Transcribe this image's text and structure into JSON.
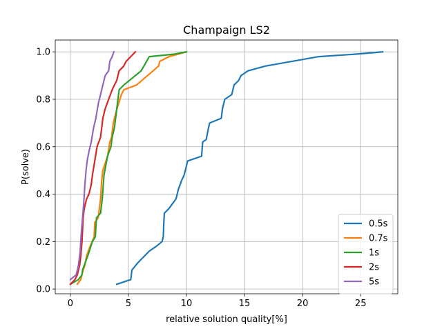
{
  "chart_data": {
    "type": "line",
    "title": "Champaign LS2",
    "xlabel": "relative solution quality[%]",
    "ylabel": "P(solve)",
    "xlim": [
      -1.3,
      28.2
    ],
    "ylim": [
      -0.02,
      1.05
    ],
    "xticks": [
      0,
      5,
      10,
      15,
      20,
      25
    ],
    "xtick_labels": [
      "0",
      "5",
      "10",
      "15",
      "20",
      "25"
    ],
    "yticks": [
      0.0,
      0.2,
      0.4,
      0.6,
      0.8,
      1.0
    ],
    "ytick_labels": [
      "0.0",
      "0.2",
      "0.4",
      "0.6",
      "0.8",
      "1.0"
    ],
    "grid": true,
    "legend_position": "lower-right",
    "series": [
      {
        "name": "0.5s",
        "color": "#1f77b4",
        "x": [
          4.0,
          5.2,
          5.3,
          5.8,
          6.2,
          6.8,
          7.4,
          7.9,
          8.0,
          8.05,
          8.1,
          8.5,
          9.1,
          9.3,
          9.6,
          9.8,
          10.1,
          11.3,
          11.4,
          11.7,
          11.9,
          12.0,
          13.0,
          13.1,
          13.3,
          13.9,
          14.1,
          14.5,
          14.7,
          15.3,
          16.8,
          21.4,
          24.5,
          26.9
        ],
        "y": [
          0.02,
          0.04,
          0.08,
          0.11,
          0.13,
          0.16,
          0.18,
          0.2,
          0.22,
          0.28,
          0.32,
          0.34,
          0.38,
          0.42,
          0.46,
          0.48,
          0.54,
          0.56,
          0.62,
          0.63,
          0.68,
          0.7,
          0.72,
          0.76,
          0.8,
          0.82,
          0.86,
          0.88,
          0.9,
          0.92,
          0.94,
          0.98,
          0.99,
          1.0
        ]
      },
      {
        "name": "0.7s",
        "color": "#ff7f0e",
        "x": [
          0.6,
          0.9,
          1.0,
          1.1,
          1.25,
          1.4,
          1.7,
          2.05,
          2.1,
          2.4,
          2.6,
          2.7,
          2.8,
          3.2,
          3.4,
          3.55,
          3.7,
          3.9,
          4.4,
          4.6,
          5.7,
          7.6,
          7.7,
          8.5,
          10.0
        ],
        "y": [
          0.02,
          0.04,
          0.06,
          0.08,
          0.1,
          0.14,
          0.18,
          0.22,
          0.28,
          0.3,
          0.38,
          0.46,
          0.5,
          0.56,
          0.62,
          0.64,
          0.7,
          0.74,
          0.82,
          0.84,
          0.86,
          0.94,
          0.96,
          0.98,
          1.0
        ]
      },
      {
        "name": "1s",
        "color": "#2ca02c",
        "x": [
          0.0,
          0.7,
          1.0,
          1.05,
          1.2,
          1.5,
          1.9,
          2.15,
          2.25,
          2.6,
          2.75,
          2.9,
          3.2,
          3.5,
          3.6,
          3.8,
          4.0,
          4.2,
          4.6,
          5.6,
          6.1,
          6.8,
          8.9,
          10.0
        ],
        "y": [
          0.02,
          0.04,
          0.06,
          0.08,
          0.1,
          0.14,
          0.2,
          0.22,
          0.3,
          0.32,
          0.38,
          0.48,
          0.56,
          0.6,
          0.64,
          0.68,
          0.76,
          0.84,
          0.86,
          0.9,
          0.92,
          0.98,
          0.99,
          1.0
        ]
      },
      {
        "name": "2s",
        "color": "#d62728",
        "x": [
          0.0,
          0.4,
          0.6,
          0.8,
          0.9,
          1.0,
          1.1,
          1.2,
          1.4,
          1.6,
          1.8,
          1.9,
          2.1,
          2.3,
          2.6,
          2.7,
          2.8,
          3.0,
          3.3,
          3.6,
          3.8,
          4.0,
          4.2,
          4.6,
          4.8,
          5.2,
          5.6
        ],
        "y": [
          0.02,
          0.04,
          0.06,
          0.1,
          0.14,
          0.2,
          0.3,
          0.34,
          0.38,
          0.4,
          0.44,
          0.48,
          0.54,
          0.6,
          0.64,
          0.68,
          0.72,
          0.76,
          0.8,
          0.84,
          0.86,
          0.88,
          0.92,
          0.94,
          0.96,
          0.98,
          1.0
        ]
      },
      {
        "name": "5s",
        "color": "#9467bd",
        "x": [
          0.0,
          0.5,
          0.7,
          0.85,
          0.95,
          1.05,
          1.15,
          1.25,
          1.35,
          1.45,
          1.6,
          1.8,
          2.0,
          2.2,
          2.4,
          2.6,
          2.8,
          3.0,
          3.3,
          3.4,
          3.6,
          3.75
        ],
        "y": [
          0.04,
          0.06,
          0.1,
          0.16,
          0.24,
          0.3,
          0.36,
          0.44,
          0.5,
          0.54,
          0.58,
          0.62,
          0.68,
          0.72,
          0.78,
          0.82,
          0.86,
          0.9,
          0.92,
          0.96,
          0.98,
          1.0
        ]
      }
    ]
  }
}
